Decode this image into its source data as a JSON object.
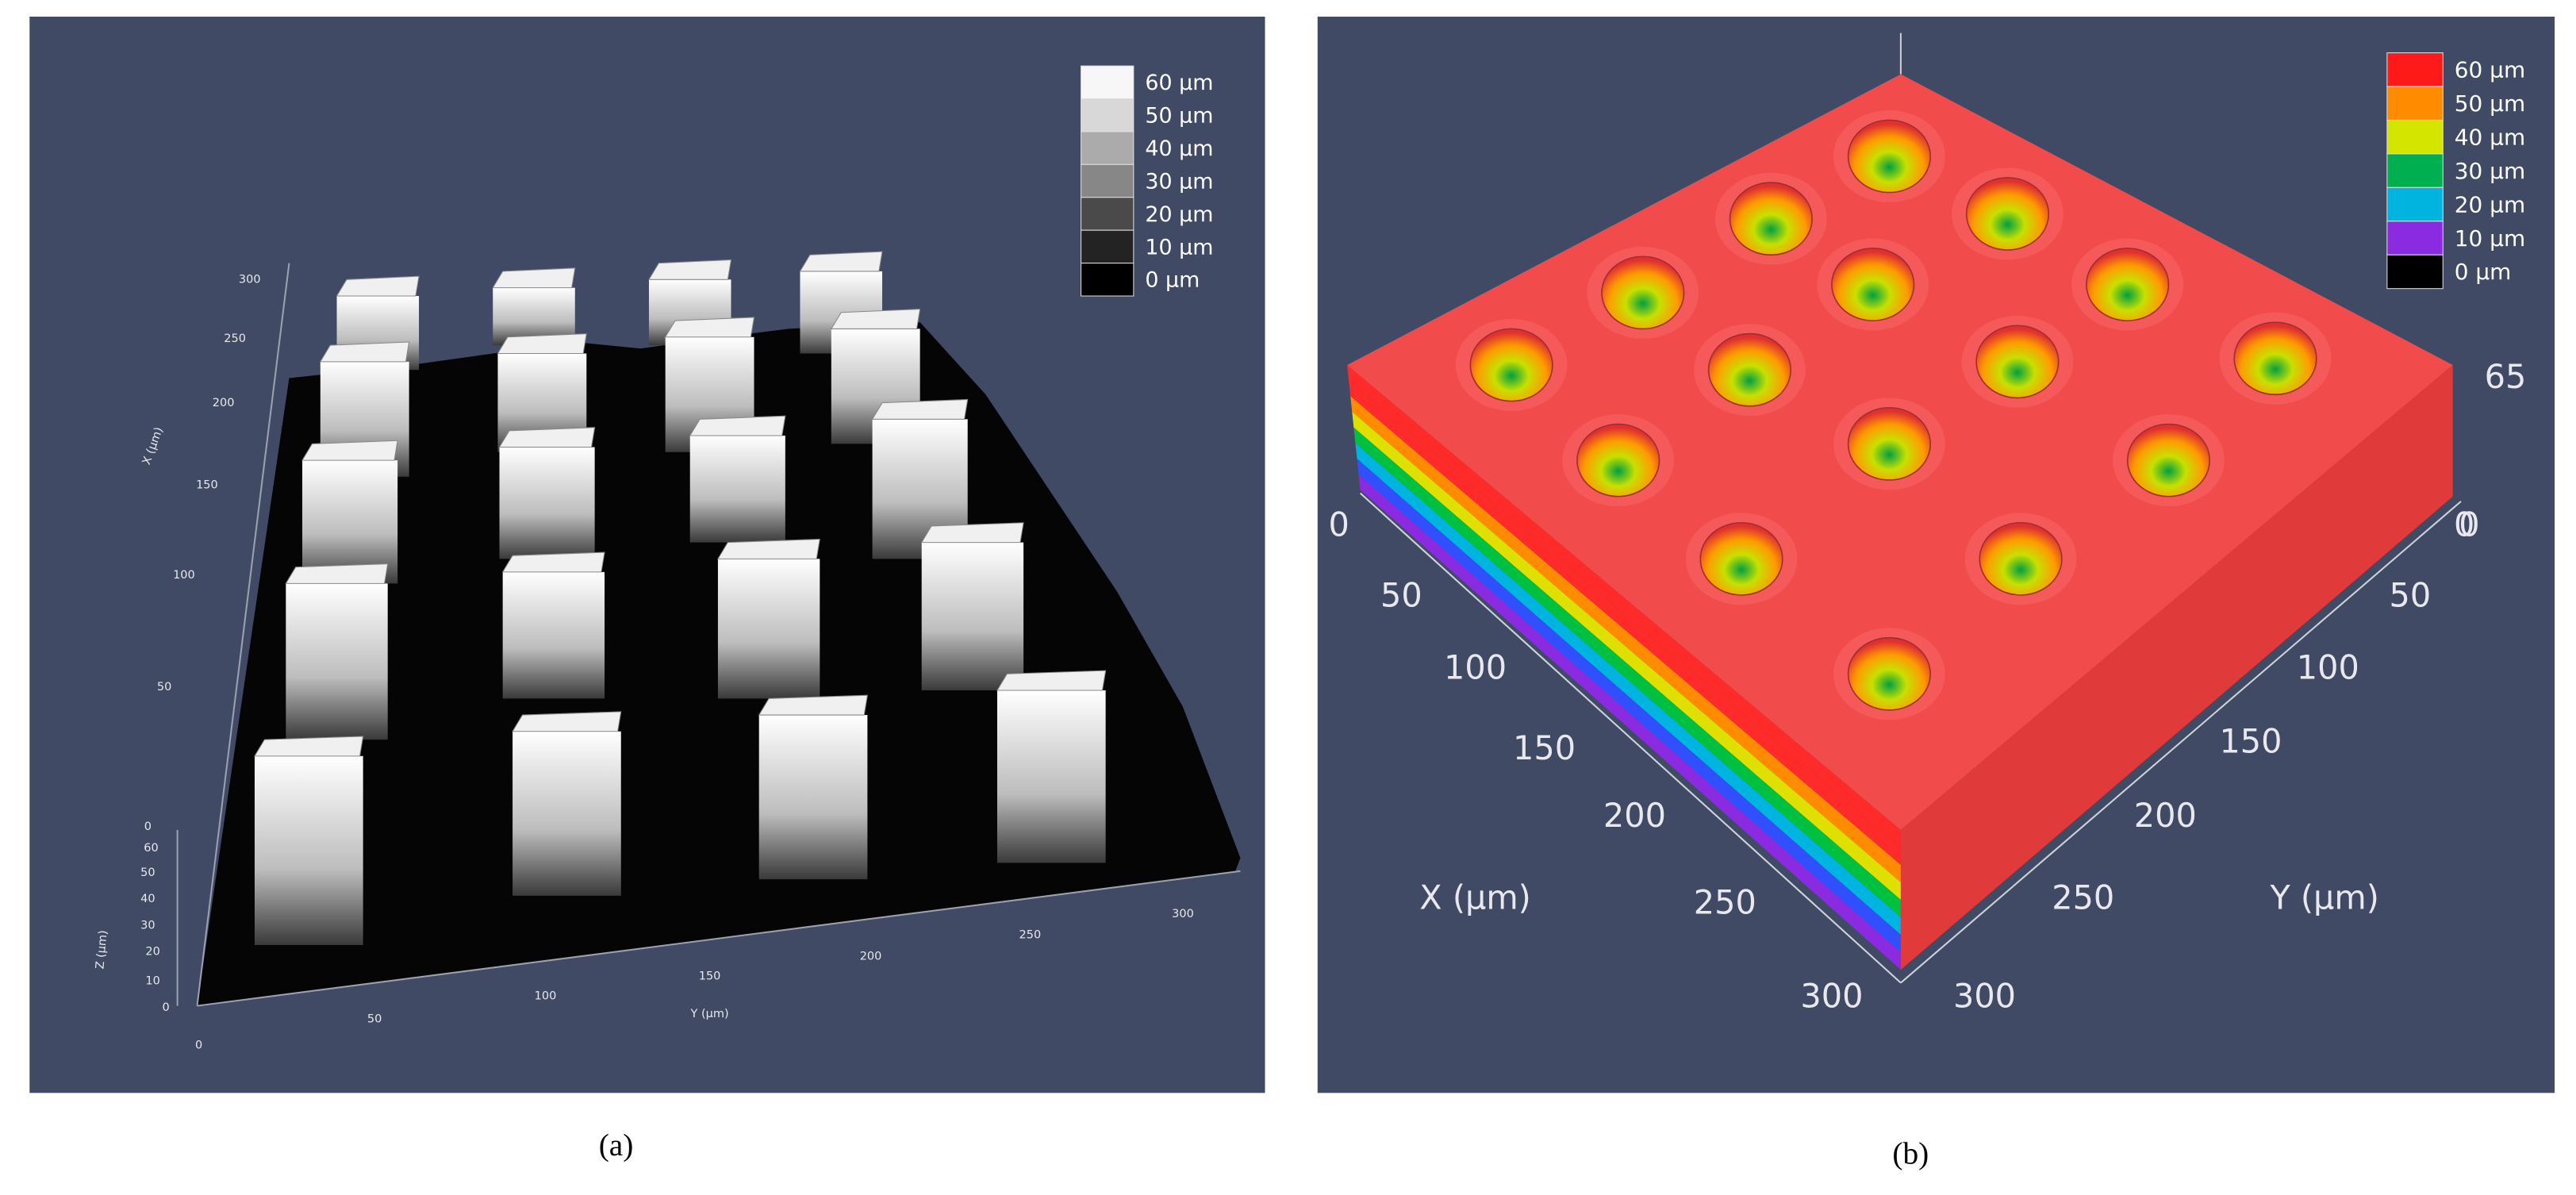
{
  "panel_a": {
    "legend": [
      {
        "label": "60 μm",
        "color": "#f7f7f7"
      },
      {
        "label": "50 μm",
        "color": "#d8d8d8"
      },
      {
        "label": "40 μm",
        "color": "#ababab"
      },
      {
        "label": "30 μm",
        "color": "#878787"
      },
      {
        "label": "20 μm",
        "color": "#4a4a4a"
      },
      {
        "label": "10 μm",
        "color": "#232323"
      },
      {
        "label": "0 μm",
        "color": "#000000"
      }
    ],
    "x_axis": {
      "label": "X (μm)",
      "ticks": [
        "300",
        "250",
        "200",
        "150",
        "100",
        "50",
        "0"
      ]
    },
    "z_axis": {
      "label": "Z (μm)",
      "ticks": [
        "60",
        "50",
        "40",
        "30",
        "20",
        "10",
        "0"
      ]
    },
    "y_axis": {
      "label": "Y (μm)",
      "ticks": [
        "0",
        "50",
        "100",
        "150",
        "200",
        "250",
        "300"
      ]
    },
    "caption": "(a)"
  },
  "panel_b": {
    "legend": [
      {
        "label": "60 μm",
        "color": "#ff1a1a"
      },
      {
        "label": "50 μm",
        "color": "#ff8c00"
      },
      {
        "label": "40 μm",
        "color": "#d4e600"
      },
      {
        "label": "30 μm",
        "color": "#00b050"
      },
      {
        "label": "20 μm",
        "color": "#00b4e0"
      },
      {
        "label": "10 μm",
        "color": "#8a2be2"
      },
      {
        "label": "0 μm",
        "color": "#000000"
      }
    ],
    "z_axis": {
      "ticks": [
        "65",
        "0"
      ]
    },
    "x_axis": {
      "label": "X (μm)",
      "ticks": [
        "0",
        "50",
        "100",
        "150",
        "200",
        "250",
        "300"
      ]
    },
    "y_axis": {
      "label": "Y (μm)",
      "ticks": [
        "0",
        "50",
        "100",
        "150",
        "200",
        "250",
        "300"
      ]
    },
    "caption": "(b)"
  }
}
